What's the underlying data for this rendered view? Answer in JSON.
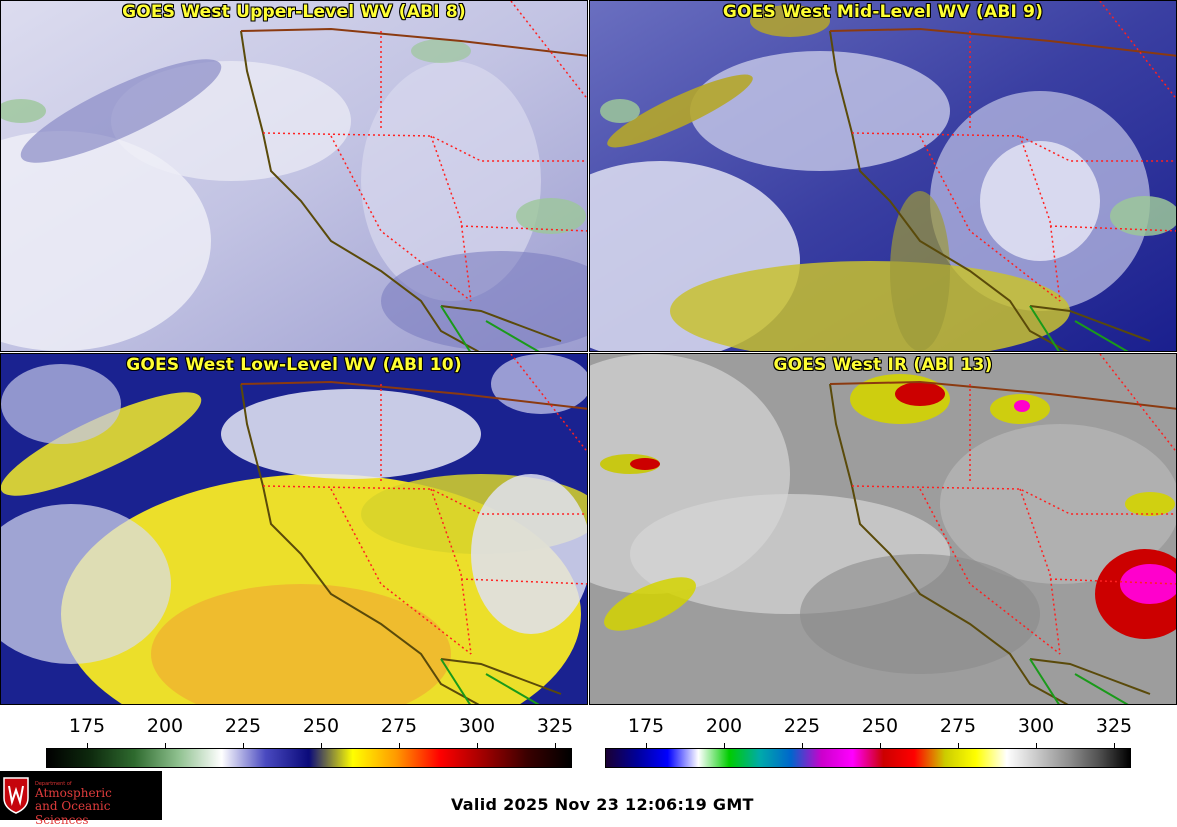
{
  "panels": [
    {
      "title": "GOES West Upper-Level WV (ABI 8)",
      "colors": {
        "base": "#c8c9e6",
        "deep": "#6a6cbb",
        "bright": "#f2f2f8",
        "accent": "#8fba84"
      }
    },
    {
      "title": "GOES West Mid-Level WV (ABI 9)",
      "colors": {
        "base": "#5a5fb0",
        "deep": "#10168a",
        "bright": "#eef0f8",
        "accent": "#c7c23a"
      }
    },
    {
      "title": "GOES West Low-Level WV (ABI 10)",
      "colors": {
        "base": "#e8e033",
        "deep": "#151f8a",
        "bright": "#eff1f9",
        "accent": "#f2a233"
      }
    },
    {
      "title": "GOES West IR (ABI 13)",
      "colors": {
        "base": "#9e9e9e",
        "deep": "#6c6c6c",
        "bright": "#e4e4e4",
        "accent": "#e0d400"
      }
    }
  ],
  "scales": [
    {
      "ticks": [
        "175",
        "200",
        "225",
        "250",
        "275",
        "300",
        "325"
      ],
      "gradient": [
        "#000000",
        "#0e2a0e",
        "#2e6a2e",
        "#8ec08e",
        "#ffffff",
        "#4a4ac0",
        "#0a0a7a",
        "#ffff00",
        "#ff9900",
        "#ff0000",
        "#a00000",
        "#3a0000",
        "#000000"
      ]
    },
    {
      "ticks": [
        "175",
        "200",
        "225",
        "250",
        "275",
        "300",
        "325"
      ],
      "gradient": [
        "#1a0033",
        "#000099",
        "#0000ff",
        "#ffffff",
        "#00cc00",
        "#00aaaa",
        "#0066cc",
        "#cc00cc",
        "#ff00ff",
        "#cc0000",
        "#ff0000",
        "#cccc00",
        "#ffff00",
        "#ffffff",
        "#c8c8c8",
        "#909090",
        "#505050",
        "#000000"
      ]
    }
  ],
  "logo": {
    "small_text": "Department of",
    "line1": "Atmospheric",
    "line2": "and Oceanic Sciences",
    "colors": {
      "text": "#e03c3c",
      "shield": "#c5050c"
    }
  },
  "valid_time": "Valid 2025 Nov 23 12:06:19 GMT"
}
